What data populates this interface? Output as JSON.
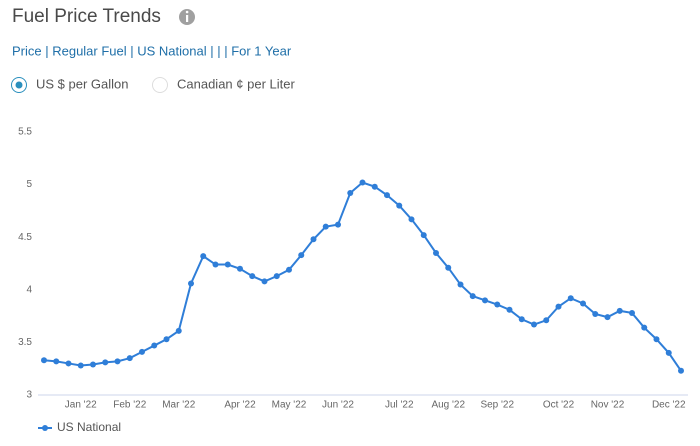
{
  "header": {
    "title": "Fuel Price Trends",
    "subtitle": "Price | Regular Fuel | US National | | | For 1 Year"
  },
  "options": [
    {
      "label": "US $ per Gallon",
      "selected": true
    },
    {
      "label": "Canadian ¢ per Liter",
      "selected": false
    }
  ],
  "chart_data": {
    "type": "line",
    "categories": [
      null,
      null,
      null,
      "Jan '22",
      null,
      null,
      null,
      "Feb '22",
      null,
      null,
      null,
      "Mar '22",
      null,
      null,
      null,
      null,
      "Apr '22",
      null,
      null,
      null,
      "May '22",
      null,
      null,
      null,
      "Jun '22",
      null,
      null,
      null,
      null,
      "Jul '22",
      null,
      null,
      null,
      "Aug '22",
      null,
      null,
      null,
      "Sep '22",
      null,
      null,
      null,
      null,
      "Oct '22",
      null,
      null,
      null,
      "Nov '22",
      null,
      null,
      null,
      null,
      "Dec '22",
      null
    ],
    "series": [
      {
        "name": "US National",
        "color": "#2f7ed8",
        "values": [
          3.33,
          3.32,
          3.3,
          3.28,
          3.29,
          3.31,
          3.32,
          3.35,
          3.41,
          3.47,
          3.53,
          3.61,
          4.06,
          4.32,
          4.24,
          4.24,
          4.2,
          4.13,
          4.08,
          4.13,
          4.19,
          4.33,
          4.48,
          4.6,
          4.62,
          4.92,
          5.02,
          4.98,
          4.9,
          4.8,
          4.67,
          4.52,
          4.35,
          4.21,
          4.05,
          3.94,
          3.9,
          3.86,
          3.81,
          3.72,
          3.67,
          3.71,
          3.84,
          3.92,
          3.87,
          3.77,
          3.74,
          3.8,
          3.78,
          3.64,
          3.53,
          3.4,
          3.23
        ]
      }
    ],
    "ylim": [
      3,
      5.5
    ],
    "yticks": [
      3,
      3.5,
      4,
      4.5,
      5,
      5.5
    ],
    "grid": false
  }
}
